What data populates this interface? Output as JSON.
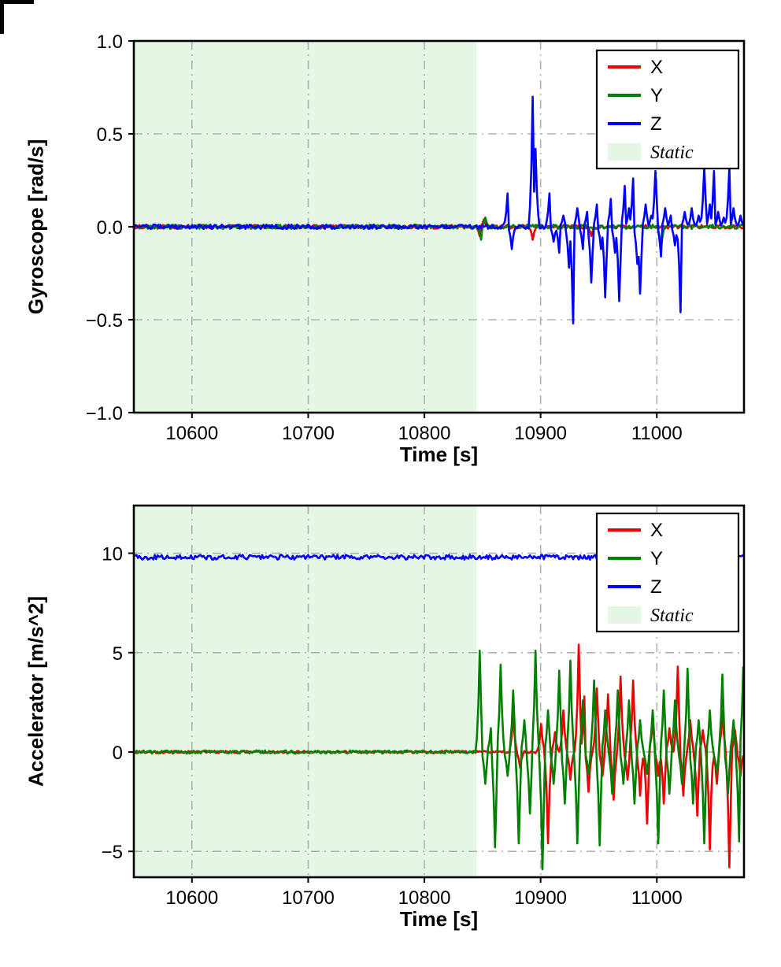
{
  "figure": {
    "background": "#ffffff",
    "axes_border_color": "#000000",
    "grid_color": "#b0b0b0",
    "static_fill_color": "#e4f6e4"
  },
  "chart_data": [
    {
      "type": "line",
      "title": "",
      "xlabel": "Time [s]",
      "ylabel": "Gyroscope [rad/s]",
      "xlim": [
        10550,
        11075
      ],
      "ylim": [
        -1.0,
        1.0
      ],
      "xticks": [
        10600,
        10700,
        10800,
        10900,
        11000
      ],
      "xtick_labels": [
        "10600",
        "10700",
        "10800",
        "10900",
        "11000"
      ],
      "yticks": [
        -1.0,
        -0.5,
        0.0,
        0.5,
        1.0
      ],
      "ytick_labels": [
        "−1.0",
        "−0.5",
        "0.0",
        "0.5",
        "1.0"
      ],
      "grid": true,
      "legend_position": "upper right",
      "legend": {
        "entries": [
          {
            "label": "X",
            "color": "#ee0000",
            "swatch": "line",
            "italic": false
          },
          {
            "label": "Y",
            "color": "#008000",
            "swatch": "line",
            "italic": false
          },
          {
            "label": "Z",
            "color": "#0000ff",
            "swatch": "line",
            "italic": false
          },
          {
            "label": "Static",
            "color": "#e4f6e4",
            "swatch": "patch",
            "italic": true
          }
        ]
      },
      "static_region": {
        "x0": 10550,
        "x1": 10845,
        "color": "#e4f6e4",
        "label": "Static"
      },
      "series": [
        {
          "name": "X",
          "color": "#ee0000",
          "baseline": 0,
          "noise": 0.01,
          "seed": 11,
          "spikes": [
            [
              10848,
              -0.05
            ],
            [
              10851,
              0.04
            ],
            [
              10893,
              -0.07
            ],
            [
              10944,
              -0.05
            ]
          ]
        },
        {
          "name": "Y",
          "color": "#008000",
          "baseline": 0,
          "noise": 0.012,
          "seed": 12,
          "spikes": [
            [
              10849,
              -0.07
            ],
            [
              10852,
              0.05
            ],
            [
              11004,
              -0.12
            ]
          ]
        },
        {
          "name": "Z",
          "color": "#0000ff",
          "baseline": 0,
          "noise": 0.012,
          "seed": 13,
          "spikes": [
            [
              10872,
              0.18
            ],
            [
              10875,
              -0.12
            ],
            [
              10893,
              0.7
            ],
            [
              10896,
              0.42
            ],
            [
              10908,
              0.18
            ],
            [
              10911,
              -0.08
            ],
            [
              10916,
              -0.14
            ],
            [
              10919,
              0.06
            ],
            [
              10924,
              -0.22
            ],
            [
              10928,
              -0.52
            ],
            [
              10932,
              0.1
            ],
            [
              10936,
              -0.12
            ],
            [
              10940,
              0.08
            ],
            [
              10944,
              -0.3
            ],
            [
              10948,
              0.12
            ],
            [
              10952,
              -0.12
            ],
            [
              10956,
              -0.38
            ],
            [
              10960,
              0.15
            ],
            [
              10964,
              -0.14
            ],
            [
              10968,
              -0.4
            ],
            [
              10972,
              0.22
            ],
            [
              10976,
              0.1
            ],
            [
              10980,
              0.26
            ],
            [
              10983,
              -0.2
            ],
            [
              10986,
              -0.36
            ],
            [
              10990,
              0.12
            ],
            [
              10995,
              0.06
            ],
            [
              10999,
              0.3
            ],
            [
              11003,
              -0.16
            ],
            [
              11007,
              0.1
            ],
            [
              11012,
              0.06
            ],
            [
              11016,
              -0.1
            ],
            [
              11020,
              -0.46
            ],
            [
              11024,
              0.08
            ],
            [
              11030,
              0.1
            ],
            [
              11036,
              0.06
            ],
            [
              11041,
              0.32
            ],
            [
              11045,
              0.12
            ],
            [
              11049,
              0.3
            ],
            [
              11053,
              0.08
            ],
            [
              11058,
              0.05
            ],
            [
              11062,
              0.32
            ],
            [
              11066,
              0.1
            ],
            [
              11072,
              0.06
            ]
          ]
        }
      ]
    },
    {
      "type": "line",
      "title": "",
      "xlabel": "Time [s]",
      "ylabel": "Accelerator [m/s^2]",
      "xlim": [
        10550,
        11075
      ],
      "ylim": [
        -6.3,
        12.4
      ],
      "xticks": [
        10600,
        10700,
        10800,
        10900,
        11000
      ],
      "xtick_labels": [
        "10600",
        "10700",
        "10800",
        "10900",
        "11000"
      ],
      "yticks": [
        -5,
        0,
        5,
        10
      ],
      "ytick_labels": [
        "−5",
        "0",
        "5",
        "10"
      ],
      "grid": true,
      "legend_position": "upper right",
      "legend": {
        "entries": [
          {
            "label": "X",
            "color": "#ee0000",
            "swatch": "line",
            "italic": false
          },
          {
            "label": "Y",
            "color": "#008000",
            "swatch": "line",
            "italic": false
          },
          {
            "label": "Z",
            "color": "#0000ff",
            "swatch": "line",
            "italic": false
          },
          {
            "label": "Static",
            "color": "#e4f6e4",
            "swatch": "patch",
            "italic": true
          }
        ]
      },
      "static_region": {
        "x0": 10550,
        "x1": 10845,
        "color": "#e4f6e4",
        "label": "Static"
      },
      "series": [
        {
          "name": "X",
          "color": "#ee0000",
          "baseline": 0,
          "noise": 0.06,
          "seed": 21,
          "spikes": [
            [
              10876,
              1.9
            ],
            [
              10882,
              -0.8
            ],
            [
              10900,
              1.4
            ],
            [
              10906,
              -4.6
            ],
            [
              10912,
              1.0
            ],
            [
              10920,
              2.1
            ],
            [
              10926,
              -1.4
            ],
            [
              10933,
              5.4
            ],
            [
              10937,
              2.8
            ],
            [
              10941,
              -2.0
            ],
            [
              10948,
              3.2
            ],
            [
              10953,
              -1.2
            ],
            [
              10958,
              2.9
            ],
            [
              10963,
              -2.4
            ],
            [
              10969,
              3.8
            ],
            [
              10975,
              -1.4
            ],
            [
              10980,
              3.6
            ],
            [
              10986,
              -2.2
            ],
            [
              10991,
              -3.6
            ],
            [
              10996,
              1.6
            ],
            [
              11001,
              -1.2
            ],
            [
              11006,
              -2.6
            ],
            [
              11011,
              1.2
            ],
            [
              11018,
              4.3
            ],
            [
              11023,
              -2.2
            ],
            [
              11029,
              1.6
            ],
            [
              11035,
              -3.2
            ],
            [
              11040,
              1.1
            ],
            [
              11046,
              -4.9
            ],
            [
              11051,
              -1.6
            ],
            [
              11056,
              2.1
            ],
            [
              11062,
              -5.8
            ],
            [
              11067,
              1.1
            ],
            [
              11072,
              -1.2
            ]
          ]
        },
        {
          "name": "Y",
          "color": "#008000",
          "baseline": 0,
          "noise": 0.08,
          "seed": 22,
          "spikes": [
            [
              10848,
              5.1
            ],
            [
              10852,
              -1.6
            ],
            [
              10857,
              1.2
            ],
            [
              10861,
              -4.8
            ],
            [
              10866,
              4.4
            ],
            [
              10871,
              -1.2
            ],
            [
              10876,
              3.1
            ],
            [
              10881,
              -4.6
            ],
            [
              10886,
              1.6
            ],
            [
              10891,
              -3.1
            ],
            [
              10896,
              5.1
            ],
            [
              10901,
              -5.9
            ],
            [
              10906,
              2.1
            ],
            [
              10911,
              -1.6
            ],
            [
              10916,
              4.1
            ],
            [
              10921,
              -2.6
            ],
            [
              10926,
              4.6
            ],
            [
              10931,
              -4.6
            ],
            [
              10936,
              2.6
            ],
            [
              10941,
              -1.1
            ],
            [
              10946,
              3.6
            ],
            [
              10951,
              -4.7
            ],
            [
              10956,
              2.1
            ],
            [
              10961,
              -2.1
            ],
            [
              10966,
              3.1
            ],
            [
              10971,
              -1.6
            ],
            [
              10976,
              2.6
            ],
            [
              10981,
              -2.6
            ],
            [
              10986,
              1.6
            ],
            [
              10991,
              -1.1
            ],
            [
              10996,
              2.1
            ],
            [
              11001,
              -4.6
            ],
            [
              11006,
              3.1
            ],
            [
              11011,
              -2.1
            ],
            [
              11016,
              2.6
            ],
            [
              11021,
              -1.6
            ],
            [
              11026,
              4.2
            ],
            [
              11031,
              -2.6
            ],
            [
              11036,
              1.6
            ],
            [
              11041,
              -4.6
            ],
            [
              11046,
              2.1
            ],
            [
              11051,
              -1.1
            ],
            [
              11056,
              3.9
            ],
            [
              11061,
              -2.1
            ],
            [
              11066,
              1.6
            ],
            [
              11071,
              -4.5
            ],
            [
              11074,
              4.3
            ]
          ]
        },
        {
          "name": "Z",
          "color": "#0000ff",
          "baseline": 9.8,
          "noise": 0.12,
          "seed": 23,
          "spikes": []
        }
      ]
    }
  ]
}
